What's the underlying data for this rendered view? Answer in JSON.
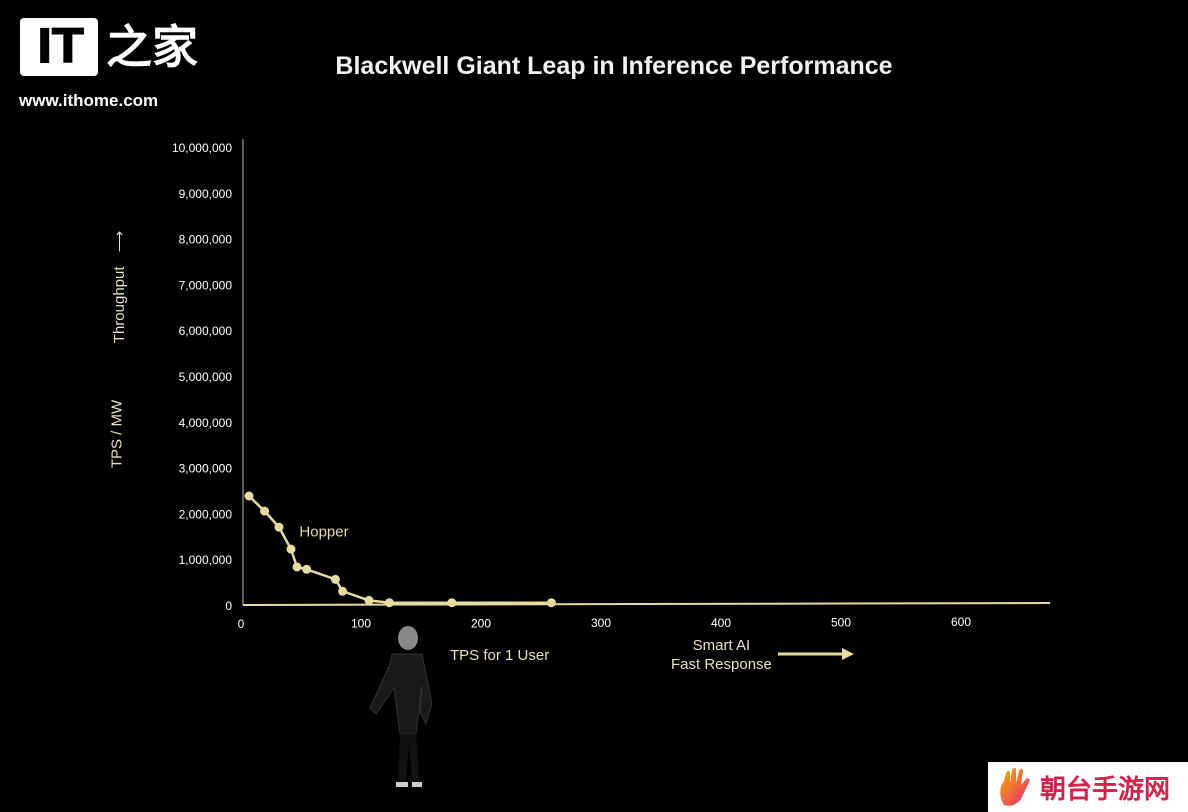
{
  "logo": {
    "mark": "IT",
    "name_zh": "之家",
    "url": "www.ithome.com"
  },
  "watermark": {
    "text": "朝台手游网",
    "icon": "hand-icon"
  },
  "colors": {
    "background": "#000000",
    "series": "#e6dca0",
    "axis": "#e6dca0",
    "text": "#ffffff",
    "watermark_text": "#d8204a"
  },
  "y_axis_labels": {
    "direction": "Throughput",
    "units": "TPS / MW"
  },
  "x_axis_labels": {
    "main": "TPS for 1 User",
    "hint_line1": "Smart AI",
    "hint_line2": "Fast Response"
  },
  "chart_data": {
    "type": "line",
    "title": "Blackwell Giant Leap in Inference Performance",
    "xlabel": "TPS for 1 User",
    "ylabel": "TPS / MW",
    "xlim": [
      0,
      600
    ],
    "ylim": [
      0,
      10000000
    ],
    "x_ticks": [
      "0",
      "100",
      "200",
      "300",
      "400",
      "500",
      "600"
    ],
    "y_ticks": [
      "0",
      "1,000,000",
      "2,000,000",
      "3,000,000",
      "4,000,000",
      "5,000,000",
      "6,000,000",
      "7,000,000",
      "8,000,000",
      "9,000,000",
      "10,000,000"
    ],
    "grid": false,
    "series": [
      {
        "name": "Hopper",
        "x": [
          5,
          18,
          30,
          40,
          45,
          53,
          77,
          83,
          105,
          122,
          174,
          257
        ],
        "y": [
          2380000,
          2050000,
          1700000,
          1220000,
          830000,
          780000,
          560000,
          300000,
          100000,
          50000,
          50000,
          50000
        ]
      }
    ]
  }
}
